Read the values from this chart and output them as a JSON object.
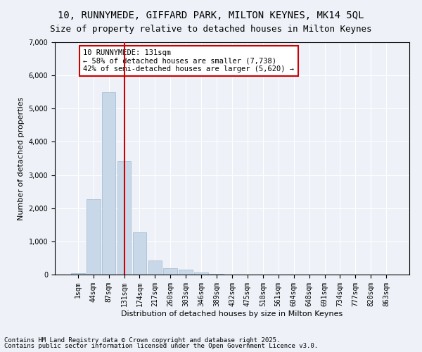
{
  "title_line1": "10, RUNNYMEDE, GIFFARD PARK, MILTON KEYNES, MK14 5QL",
  "title_line2": "Size of property relative to detached houses in Milton Keynes",
  "xlabel": "Distribution of detached houses by size in Milton Keynes",
  "ylabel": "Number of detached properties",
  "categories": [
    "1sqm",
    "44sqm",
    "87sqm",
    "131sqm",
    "174sqm",
    "217sqm",
    "260sqm",
    "303sqm",
    "346sqm",
    "389sqm",
    "432sqm",
    "475sqm",
    "518sqm",
    "561sqm",
    "604sqm",
    "648sqm",
    "691sqm",
    "734sqm",
    "777sqm",
    "820sqm",
    "863sqm"
  ],
  "values": [
    50,
    2280,
    5500,
    3420,
    1270,
    430,
    195,
    140,
    60,
    15,
    5,
    0,
    0,
    0,
    0,
    0,
    0,
    0,
    0,
    0,
    0
  ],
  "bar_color": "#c8d8e8",
  "bar_edge_color": "#a0b8cc",
  "vline_x": 3,
  "vline_color": "#cc0000",
  "ylim": [
    0,
    7000
  ],
  "yticks": [
    0,
    1000,
    2000,
    3000,
    4000,
    5000,
    6000,
    7000
  ],
  "annotation_title": "10 RUNNYMEDE: 131sqm",
  "annotation_line2": "← 58% of detached houses are smaller (7,738)",
  "annotation_line3": "42% of semi-detached houses are larger (5,620) →",
  "annotation_box_color": "#cc0000",
  "footer_line1": "Contains HM Land Registry data © Crown copyright and database right 2025.",
  "footer_line2": "Contains public sector information licensed under the Open Government Licence v3.0.",
  "bg_color": "#eef2f8",
  "plot_bg_color": "#eef2f8",
  "title_fontsize": 10,
  "subtitle_fontsize": 9,
  "axis_label_fontsize": 8,
  "tick_fontsize": 7,
  "annotation_fontsize": 7.5,
  "footer_fontsize": 6.5
}
